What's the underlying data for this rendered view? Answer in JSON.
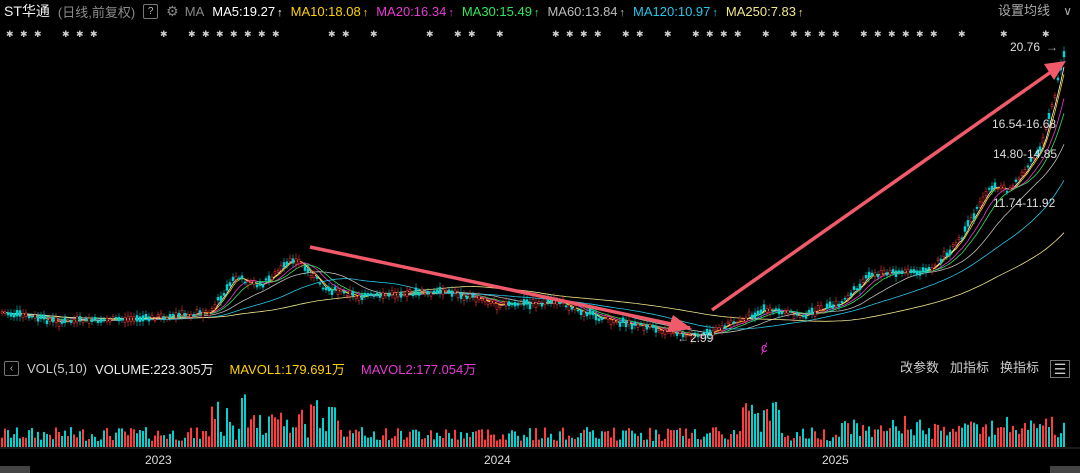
{
  "header": {
    "stock_name": "ST华通",
    "mode": "(日线,前复权)",
    "help": "?",
    "ma_label": "MA",
    "settings": "设置均线",
    "collapse": "∨",
    "ma_items": [
      {
        "label": "MA5:19.27",
        "color": "#ffffff"
      },
      {
        "label": "MA10:18.08",
        "color": "#ffd200"
      },
      {
        "label": "MA20:16.34",
        "color": "#e83ad4"
      },
      {
        "label": "MA30:15.49",
        "color": "#2ee85a"
      },
      {
        "label": "MA60:13.84",
        "color": "#bbbbbb"
      },
      {
        "label": "MA120:10.97",
        "color": "#27c6e8"
      },
      {
        "label": "MA250:7.83",
        "color": "#f0e68c"
      }
    ],
    "arrow_glyph": "↑"
  },
  "main_chart": {
    "price_labels": [
      "20.76",
      "16.54-16.68",
      "14.80-14.85",
      "11.74-11.92",
      "2.99"
    ],
    "marker": "ȼ"
  },
  "volume_panel": {
    "collapse": "‹",
    "title": "VOL(5,10)",
    "volume": "VOLUME:223.305万",
    "mavol1": "MAVOL1:179.691万",
    "mavol2": "MAVOL2:177.054万",
    "buttons": [
      "改参数",
      "加指标",
      "换指标"
    ],
    "menu": "☰"
  },
  "x_axis": {
    "labels": [
      "2023",
      "2024",
      "2025"
    ]
  },
  "colors": {
    "up": "#ff3b3b",
    "down": "#00d2d2",
    "annotation": "#f05a6a"
  }
}
